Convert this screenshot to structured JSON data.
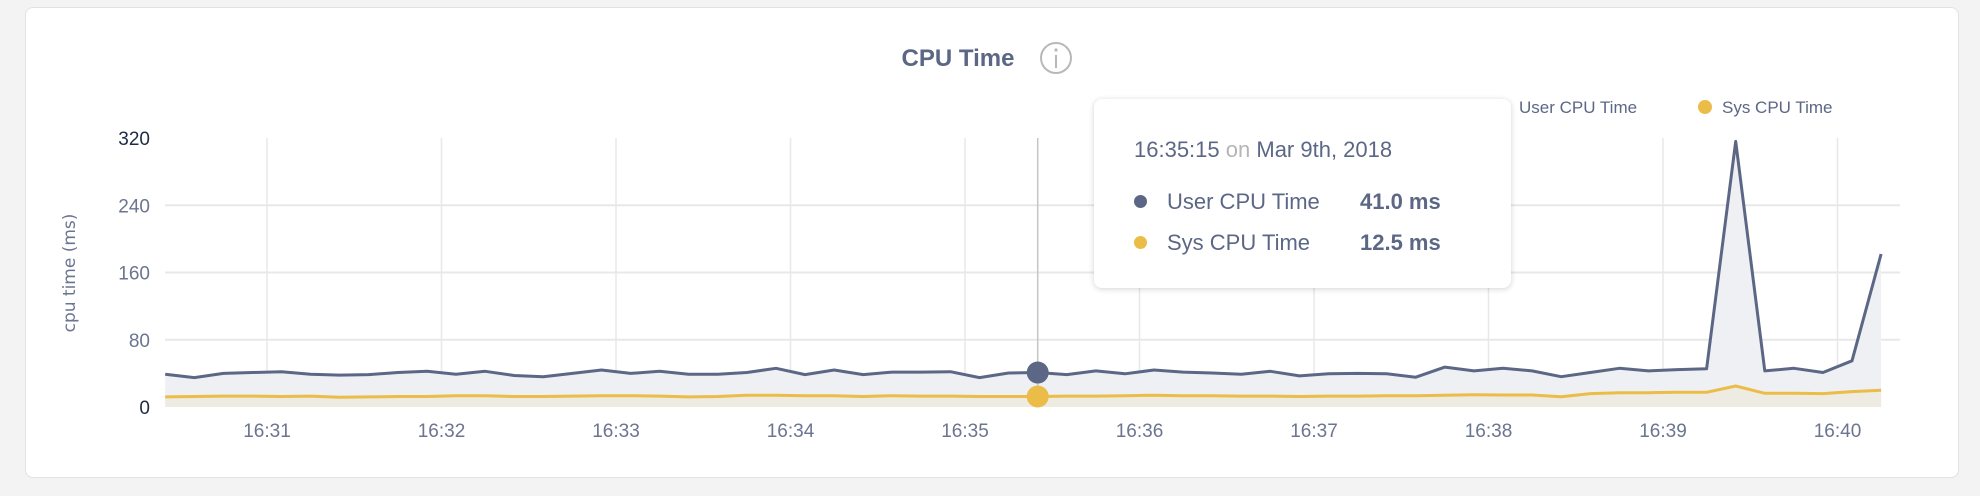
{
  "chart_data": {
    "type": "area",
    "title": "CPU Time",
    "info_icon": "info-circle-icon",
    "ylabel": "cpu time (ms)",
    "ylim": [
      0,
      320
    ],
    "yticks": [
      "0",
      "80",
      "160",
      "240",
      "320"
    ],
    "xticks": [
      "16:31",
      "16:32",
      "16:33",
      "16:34",
      "16:35",
      "16:36",
      "16:37",
      "16:38",
      "16:39",
      "16:40"
    ],
    "grid": true,
    "legend_position": "top-right",
    "x": [
      "16:30:15",
      "16:30:25",
      "16:30:35",
      "16:30:45",
      "16:30:55",
      "16:31:05",
      "16:31:15",
      "16:31:25",
      "16:31:35",
      "16:31:45",
      "16:31:55",
      "16:32:05",
      "16:32:15",
      "16:32:25",
      "16:32:35",
      "16:32:45",
      "16:32:55",
      "16:33:05",
      "16:33:15",
      "16:33:25",
      "16:33:35",
      "16:33:45",
      "16:33:55",
      "16:34:05",
      "16:34:15",
      "16:34:25",
      "16:34:35",
      "16:34:45",
      "16:34:55",
      "16:35:05",
      "16:35:15",
      "16:35:25",
      "16:35:35",
      "16:35:45",
      "16:35:55",
      "16:36:05",
      "16:36:15",
      "16:36:25",
      "16:36:35",
      "16:36:45",
      "16:36:55",
      "16:37:05",
      "16:37:15",
      "16:37:25",
      "16:37:35",
      "16:37:45",
      "16:37:55",
      "16:38:05",
      "16:38:15",
      "16:38:25",
      "16:38:35",
      "16:38:45",
      "16:38:55",
      "16:39:05",
      "16:39:15",
      "16:39:25",
      "16:39:35",
      "16:39:45",
      "16:39:55",
      "16:40:05"
    ],
    "series": [
      {
        "name": "User CPU Time",
        "color": "#5b6785",
        "fill": "#eff0f3",
        "values": [
          39,
          35,
          40,
          41,
          42,
          39,
          38,
          38.5,
          41,
          42.5,
          39,
          42.5,
          37.5,
          36,
          40,
          44,
          40,
          42.5,
          39,
          39,
          41,
          46,
          38.5,
          44,
          38.5,
          41.5,
          41.5,
          42,
          35,
          40.5,
          41,
          38.5,
          43,
          39.5,
          44,
          41.5,
          40.5,
          39,
          42.5,
          37,
          39.5,
          40,
          39.5,
          35.5,
          47.5,
          43,
          46,
          43,
          36,
          41,
          46,
          43,
          44.5,
          45.5,
          316,
          43,
          46,
          41,
          55,
          182
        ]
      },
      {
        "name": "Sys CPU Time",
        "color": "#ebbd48",
        "fill": "#eeebe3",
        "values": [
          12,
          12.5,
          13,
          13,
          12.5,
          13,
          11.5,
          12,
          12.5,
          12.5,
          13.5,
          13.5,
          12.5,
          12.5,
          13,
          13.5,
          13.5,
          13,
          12,
          12.5,
          14,
          14,
          13.5,
          13.5,
          12.5,
          13.5,
          13,
          13,
          12.5,
          12.5,
          12.5,
          13,
          13,
          13.5,
          14,
          13.5,
          13.5,
          13,
          13,
          12.5,
          13,
          13,
          13.5,
          13.5,
          14,
          14.5,
          14.3,
          14.3,
          12.3,
          16,
          17,
          17,
          17.5,
          17.5,
          25,
          16.3,
          16.3,
          16,
          18.3,
          20
        ]
      }
    ],
    "tooltip": {
      "time": "16:35:15",
      "on": "on",
      "date": "Mar 9th, 2018",
      "rows": [
        {
          "label": "User CPU Time",
          "value": "41.0 ms"
        },
        {
          "label": "Sys CPU Time",
          "value": "12.5 ms"
        }
      ]
    }
  }
}
